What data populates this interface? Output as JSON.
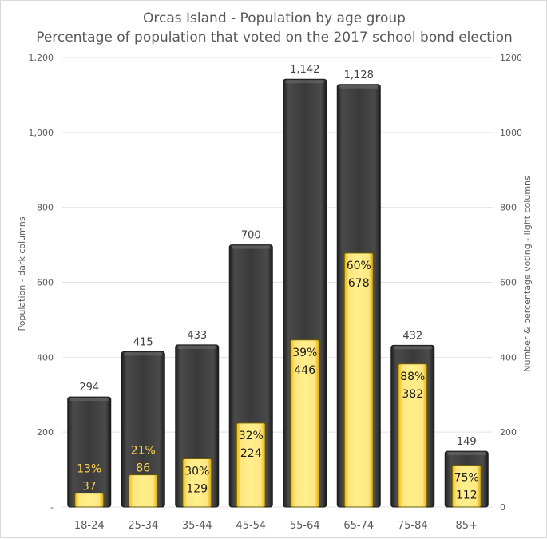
{
  "chart_data": {
    "type": "bar",
    "title": "Orcas Island - Population by age group",
    "subtitle": "Percentage of population that voted on the 2017 school bond election",
    "categories": [
      "18-24",
      "25-34",
      "35-44",
      "45-54",
      "55-64",
      "65-74",
      "75-84",
      "85+"
    ],
    "series": [
      {
        "name": "Population - dark columns",
        "values": [
          294,
          415,
          433,
          700,
          1142,
          1128,
          432,
          149
        ],
        "labels": [
          "294",
          "415",
          "433",
          "700",
          "1,142",
          "1,128",
          "432",
          "149"
        ],
        "color": "#3a3a3a"
      },
      {
        "name": "Number & percentage voting - light columns",
        "values": [
          37,
          86,
          129,
          224,
          446,
          678,
          382,
          112
        ],
        "percentages": [
          "13%",
          "21%",
          "30%",
          "32%",
          "39%",
          "60%",
          "88%",
          "75%"
        ],
        "color": "#ffe066"
      }
    ],
    "ylabel": "Population  - dark columns",
    "y2label": "Number & percentage voting - light columns",
    "ylim": [
      0,
      1200
    ],
    "y2lim": [
      0,
      1200
    ],
    "y_ticks": [
      "-",
      "200",
      "400",
      "600",
      "800",
      "1,000",
      "1,200"
    ],
    "y2_ticks": [
      "0",
      "200",
      "400",
      "600",
      "800",
      "1000",
      "1200"
    ],
    "grid": true,
    "legend": "none"
  }
}
